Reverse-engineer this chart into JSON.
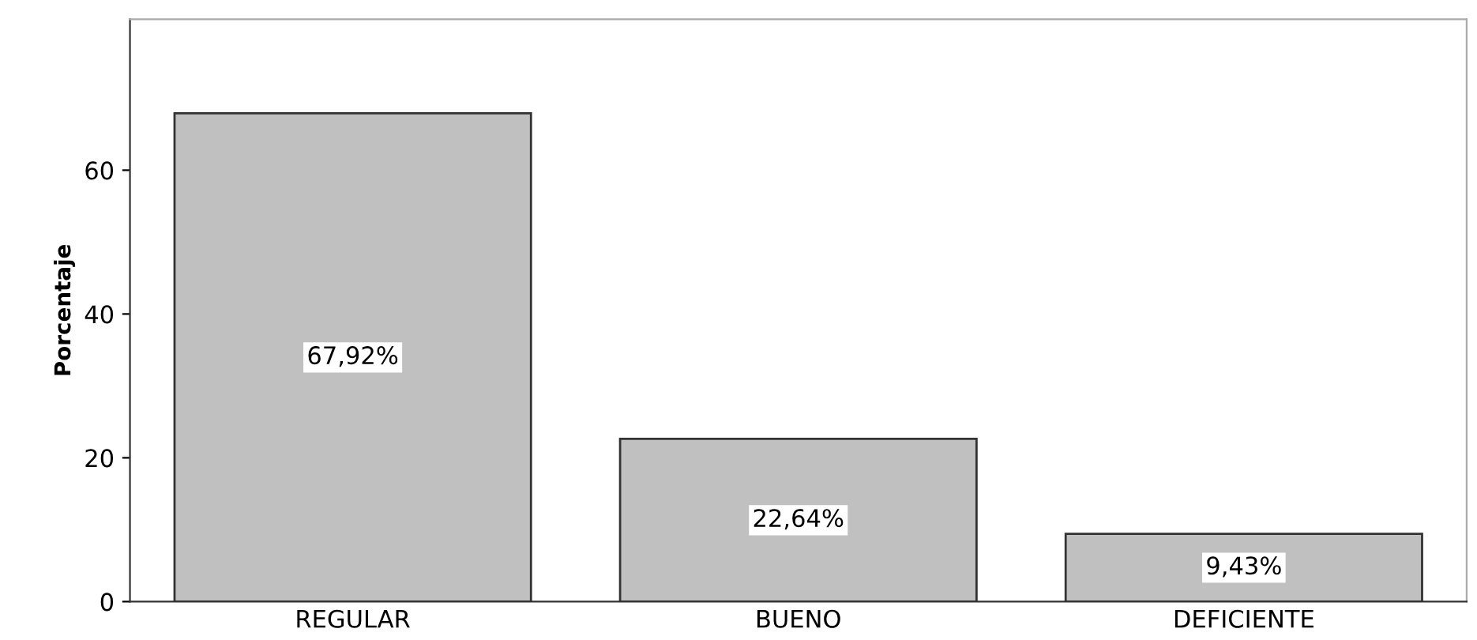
{
  "chart_data": {
    "type": "bar",
    "ylabel": "Porcentaje",
    "categories": [
      "REGULAR",
      "BUENO",
      "DEFICIENTE"
    ],
    "values": [
      67.92,
      22.64,
      9.43
    ],
    "value_labels": [
      "67,92%",
      "22,64%",
      "9,43%"
    ],
    "color": "#c0c0c0",
    "ylim": [
      0,
      81
    ],
    "yticks": [
      0,
      20,
      40,
      60
    ],
    "grid": false,
    "legend": false
  }
}
